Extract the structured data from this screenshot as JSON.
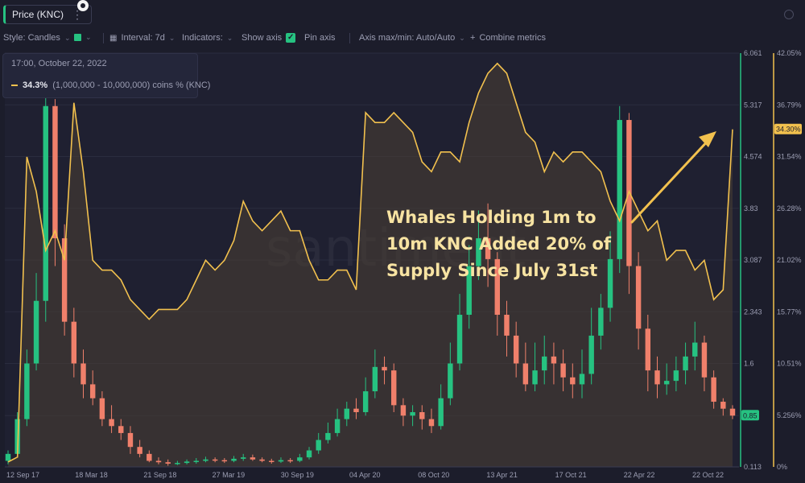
{
  "header": {
    "metric_label": "Price (KNC)"
  },
  "settings": {
    "style": "Style: Candles",
    "interval": "Interval: 7d",
    "indicators": "Indicators:",
    "show_axis": "Show axis",
    "pin_axis": "Pin axis",
    "axis_minmax": "Axis max/min: Auto/Auto",
    "combine": "Combine metrics"
  },
  "legend": {
    "date": "17:00, October 22, 2022",
    "value": "34.3%",
    "series": "(1,000,000 - 10,000,000) coins % (KNC)"
  },
  "annotation": {
    "lines": [
      "Whales Holding 1m to",
      "10m KNC Added 20% of",
      "Supply Since July 31st"
    ]
  },
  "watermark": "santiment",
  "colors": {
    "bg": "#1c1d2b",
    "up": "#26c281",
    "down": "#f0806b",
    "line": "#f2c14e",
    "grid": "#2a2c3f"
  },
  "chart_data": {
    "type": "line",
    "x_ticks": [
      "12 Sep 17",
      "18 Mar 18",
      "21 Sep 18",
      "27 Mar 19",
      "30 Sep 19",
      "04 Apr 20",
      "08 Oct 20",
      "13 Apr 21",
      "17 Oct 21",
      "22 Apr 22",
      "22 Oct 22"
    ],
    "price_axis": {
      "ticks": [
        6.061,
        5.317,
        4.574,
        3.83,
        3.087,
        2.343,
        1.6,
        0.85,
        0.113
      ],
      "current": 0.85,
      "min": 0.113,
      "max": 6.061
    },
    "pct_axis": {
      "ticks": [
        "42.05%",
        "36.79%",
        "31.54%",
        "26.28%",
        "21.02%",
        "15.77%",
        "10.51%",
        "5.256%",
        "0%"
      ],
      "current": "34.30%",
      "min": 0,
      "max": 42.05
    },
    "series": [
      {
        "name": "(1,000,000 - 10,000,000) coins % (KNC)",
        "axis": "pct",
        "values": [
          [
            0,
            0.5
          ],
          [
            1,
            1.0
          ],
          [
            2,
            31.5
          ],
          [
            3,
            28
          ],
          [
            4,
            22
          ],
          [
            5,
            24
          ],
          [
            6,
            21
          ],
          [
            7,
            37
          ],
          [
            8,
            30
          ],
          [
            9,
            21
          ],
          [
            10,
            20
          ],
          [
            11,
            20
          ],
          [
            12,
            19
          ],
          [
            13,
            17
          ],
          [
            14,
            16
          ],
          [
            15,
            15
          ],
          [
            16,
            16
          ],
          [
            17,
            16
          ],
          [
            18,
            16
          ],
          [
            19,
            17
          ],
          [
            20,
            19
          ],
          [
            21,
            21
          ],
          [
            22,
            20
          ],
          [
            23,
            21
          ],
          [
            24,
            23
          ],
          [
            25,
            27
          ],
          [
            26,
            25
          ],
          [
            27,
            24
          ],
          [
            28,
            25
          ],
          [
            29,
            26
          ],
          [
            30,
            24
          ],
          [
            31,
            24
          ],
          [
            32,
            21
          ],
          [
            33,
            19
          ],
          [
            34,
            19
          ],
          [
            35,
            20
          ],
          [
            36,
            20
          ],
          [
            37,
            18
          ],
          [
            38,
            36
          ],
          [
            39,
            35
          ],
          [
            40,
            35
          ],
          [
            41,
            36
          ],
          [
            42,
            35
          ],
          [
            43,
            34
          ],
          [
            44,
            31
          ],
          [
            45,
            30
          ],
          [
            46,
            32
          ],
          [
            47,
            32
          ],
          [
            48,
            31
          ],
          [
            49,
            35
          ],
          [
            50,
            38
          ],
          [
            51,
            40
          ],
          [
            52,
            41
          ],
          [
            53,
            40
          ],
          [
            54,
            37
          ],
          [
            55,
            34
          ],
          [
            56,
            33
          ],
          [
            57,
            30
          ],
          [
            58,
            32
          ],
          [
            59,
            31
          ],
          [
            60,
            32
          ],
          [
            61,
            32
          ],
          [
            62,
            31
          ],
          [
            63,
            30
          ],
          [
            64,
            27
          ],
          [
            65,
            25
          ],
          [
            66,
            28
          ],
          [
            67,
            26
          ],
          [
            68,
            24
          ],
          [
            69,
            25
          ],
          [
            70,
            21
          ],
          [
            71,
            22
          ],
          [
            72,
            22
          ],
          [
            73,
            20
          ],
          [
            74,
            21
          ],
          [
            75,
            17
          ],
          [
            76,
            18
          ],
          [
            77,
            34.3
          ]
        ]
      },
      {
        "name": "Price (KNC)",
        "axis": "price",
        "candles": [
          [
            0,
            0.2,
            0.3,
            0.15,
            0.35
          ],
          [
            1,
            0.3,
            0.8,
            0.25,
            0.9
          ],
          [
            2,
            0.8,
            1.6,
            0.7,
            1.8
          ],
          [
            3,
            1.6,
            2.5,
            1.5,
            2.9
          ],
          [
            4,
            2.5,
            5.3,
            2.2,
            5.6
          ],
          [
            5,
            5.3,
            3.4,
            3.0,
            5.4
          ],
          [
            6,
            3.4,
            2.2,
            2.0,
            3.6
          ],
          [
            7,
            2.2,
            1.6,
            1.4,
            2.4
          ],
          [
            8,
            1.6,
            1.3,
            1.1,
            1.8
          ],
          [
            9,
            1.3,
            1.1,
            1.0,
            1.5
          ],
          [
            10,
            1.1,
            0.8,
            0.7,
            1.2
          ],
          [
            11,
            0.8,
            0.7,
            0.6,
            1.0
          ],
          [
            12,
            0.7,
            0.6,
            0.5,
            0.8
          ],
          [
            13,
            0.6,
            0.4,
            0.3,
            0.7
          ],
          [
            14,
            0.4,
            0.3,
            0.25,
            0.5
          ],
          [
            15,
            0.3,
            0.2,
            0.18,
            0.35
          ],
          [
            16,
            0.2,
            0.18,
            0.15,
            0.25
          ],
          [
            17,
            0.18,
            0.16,
            0.13,
            0.22
          ],
          [
            18,
            0.16,
            0.17,
            0.14,
            0.2
          ],
          [
            19,
            0.17,
            0.19,
            0.15,
            0.22
          ],
          [
            20,
            0.19,
            0.2,
            0.16,
            0.24
          ],
          [
            21,
            0.2,
            0.22,
            0.18,
            0.26
          ],
          [
            22,
            0.22,
            0.21,
            0.18,
            0.25
          ],
          [
            23,
            0.21,
            0.2,
            0.17,
            0.24
          ],
          [
            24,
            0.2,
            0.23,
            0.18,
            0.27
          ],
          [
            25,
            0.23,
            0.25,
            0.2,
            0.3
          ],
          [
            26,
            0.25,
            0.22,
            0.2,
            0.29
          ],
          [
            27,
            0.22,
            0.2,
            0.18,
            0.25
          ],
          [
            28,
            0.2,
            0.19,
            0.16,
            0.23
          ],
          [
            29,
            0.19,
            0.21,
            0.17,
            0.25
          ],
          [
            30,
            0.21,
            0.2,
            0.17,
            0.24
          ],
          [
            31,
            0.2,
            0.25,
            0.18,
            0.3
          ],
          [
            32,
            0.25,
            0.35,
            0.22,
            0.4
          ],
          [
            33,
            0.35,
            0.5,
            0.3,
            0.6
          ],
          [
            34,
            0.5,
            0.6,
            0.45,
            0.75
          ],
          [
            35,
            0.6,
            0.8,
            0.55,
            0.95
          ],
          [
            36,
            0.8,
            0.95,
            0.7,
            1.05
          ],
          [
            37,
            0.95,
            0.9,
            0.8,
            1.1
          ],
          [
            38,
            0.9,
            1.2,
            0.85,
            1.4
          ],
          [
            39,
            1.2,
            1.55,
            1.1,
            1.8
          ],
          [
            40,
            1.55,
            1.5,
            1.3,
            1.7
          ],
          [
            41,
            1.5,
            1.0,
            0.9,
            1.6
          ],
          [
            42,
            1.0,
            0.85,
            0.7,
            1.1
          ],
          [
            43,
            0.85,
            0.9,
            0.7,
            1.0
          ],
          [
            44,
            0.9,
            0.8,
            0.65,
            1.0
          ],
          [
            45,
            0.8,
            0.7,
            0.6,
            0.95
          ],
          [
            46,
            0.7,
            1.1,
            0.65,
            1.3
          ],
          [
            47,
            1.1,
            1.6,
            1.0,
            1.9
          ],
          [
            48,
            1.6,
            2.3,
            1.5,
            2.6
          ],
          [
            49,
            2.3,
            3.0,
            2.1,
            3.3
          ],
          [
            50,
            3.0,
            3.4,
            2.8,
            3.8
          ],
          [
            51,
            3.4,
            3.1,
            2.7,
            3.9
          ],
          [
            52,
            3.1,
            2.3,
            2.0,
            3.2
          ],
          [
            53,
            2.3,
            2.0,
            1.7,
            2.5
          ],
          [
            54,
            2.0,
            1.6,
            1.4,
            2.2
          ],
          [
            55,
            1.6,
            1.3,
            1.2,
            1.9
          ],
          [
            56,
            1.3,
            1.5,
            1.2,
            1.9
          ],
          [
            57,
            1.5,
            1.7,
            1.3,
            2.0
          ],
          [
            58,
            1.7,
            1.6,
            1.3,
            1.9
          ],
          [
            59,
            1.6,
            1.4,
            1.2,
            1.8
          ],
          [
            60,
            1.4,
            1.3,
            1.1,
            1.6
          ],
          [
            61,
            1.3,
            1.45,
            1.1,
            1.8
          ],
          [
            62,
            1.45,
            2.0,
            1.3,
            2.4
          ],
          [
            63,
            2.0,
            2.4,
            1.8,
            2.6
          ],
          [
            64,
            2.4,
            3.1,
            2.2,
            3.5
          ],
          [
            65,
            3.1,
            5.1,
            2.9,
            5.3
          ],
          [
            66,
            5.1,
            3.0,
            2.6,
            5.2
          ],
          [
            67,
            3.0,
            2.1,
            1.8,
            3.2
          ],
          [
            68,
            2.1,
            1.5,
            1.2,
            2.3
          ],
          [
            69,
            1.5,
            1.3,
            1.1,
            1.7
          ],
          [
            70,
            1.3,
            1.35,
            1.15,
            1.6
          ],
          [
            71,
            1.35,
            1.5,
            1.2,
            1.7
          ],
          [
            72,
            1.5,
            1.7,
            1.3,
            1.9
          ],
          [
            73,
            1.7,
            1.9,
            1.5,
            2.2
          ],
          [
            74,
            1.9,
            1.4,
            1.2,
            2.0
          ],
          [
            75,
            1.4,
            1.05,
            0.95,
            1.5
          ],
          [
            76,
            1.05,
            0.95,
            0.85,
            1.1
          ],
          [
            77,
            0.95,
            0.85,
            0.8,
            1.0
          ]
        ]
      }
    ]
  }
}
